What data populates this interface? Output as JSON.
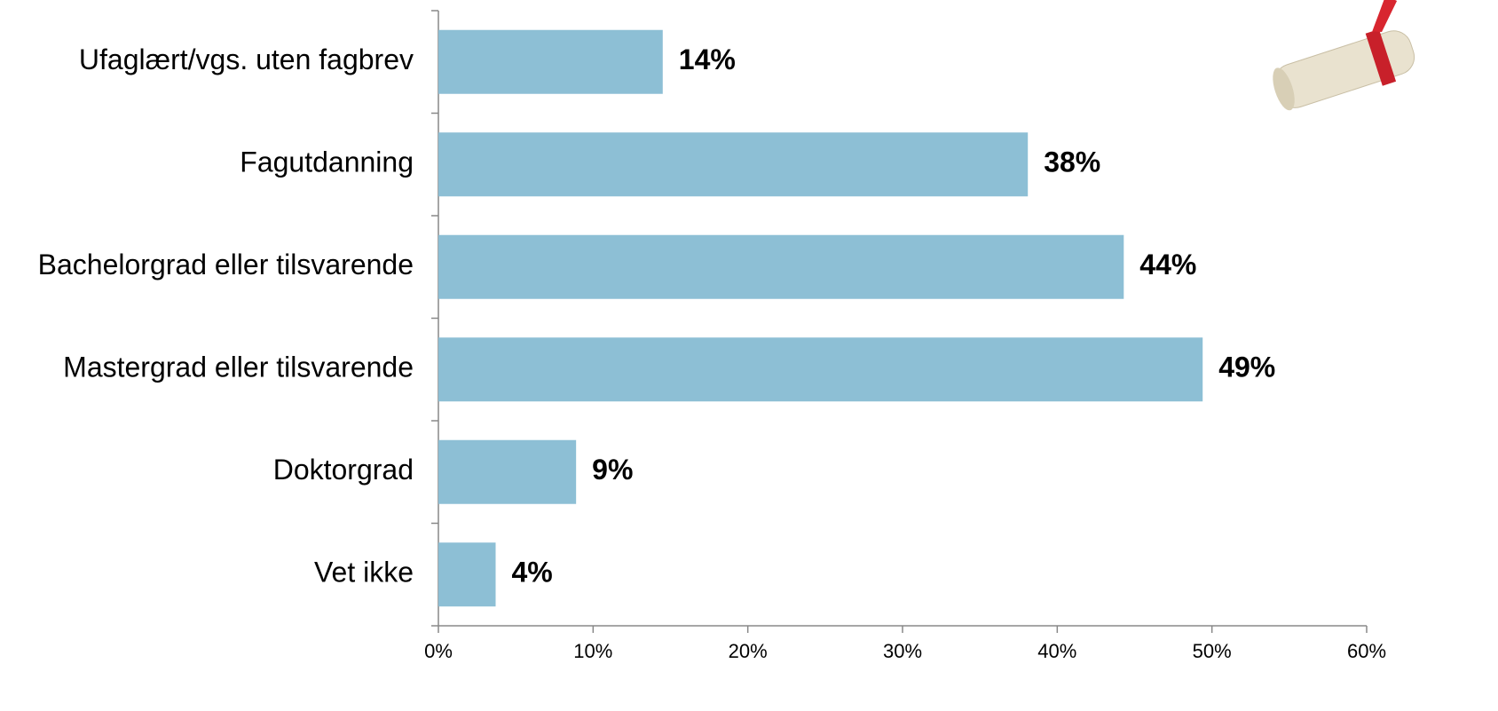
{
  "chart_data": {
    "type": "hbar",
    "categories": [
      "Ufaglært/vgs. uten fagbrev",
      "Fagutdanning",
      "Bachelorgrad eller tilsvarende",
      "Mastergrad eller tilsvarende",
      "Doktorgrad",
      "Vet ikke"
    ],
    "values": [
      14.5,
      38.1,
      44.3,
      49.4,
      8.9,
      3.7
    ],
    "value_labels": [
      "14%",
      "38%",
      "44%",
      "49%",
      "9%",
      "4%"
    ],
    "color": "#8dbfd5",
    "xlim": [
      0,
      60
    ],
    "xticks": [
      {
        "value": 0,
        "label": "0%"
      },
      {
        "value": 10,
        "label": "10%"
      },
      {
        "value": 20,
        "label": "20%"
      },
      {
        "value": 30,
        "label": "30%"
      },
      {
        "value": 40,
        "label": "40%"
      },
      {
        "value": 50,
        "label": "50%"
      },
      {
        "value": 60,
        "label": "60%"
      }
    ],
    "grid": false
  }
}
